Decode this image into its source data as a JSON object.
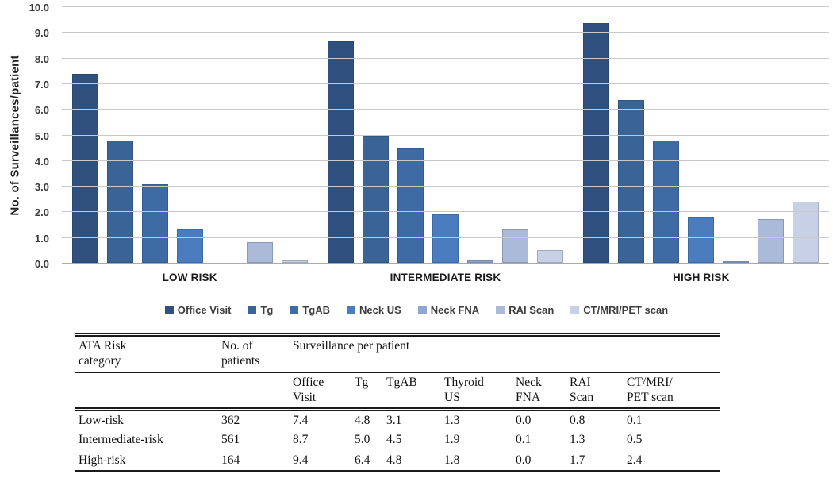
{
  "chart_data": {
    "type": "bar",
    "title": "",
    "xlabel": "",
    "ylabel": "No. of Surveillances/patient",
    "ylim": [
      0,
      10
    ],
    "ytick_step": 1.0,
    "ytick_labels": [
      "0.0",
      "1.0",
      "2.0",
      "3.0",
      "4.0",
      "5.0",
      "6.0",
      "7.0",
      "8.0",
      "9.0",
      "10.0"
    ],
    "grid": true,
    "legend_position": "bottom",
    "categories": [
      "LOW RISK",
      "INTERMEDIATE RISK",
      "HIGH RISK"
    ],
    "series": [
      {
        "name": "Office Visit",
        "color": "#30517e",
        "values": [
          7.4,
          8.7,
          9.4
        ]
      },
      {
        "name": "Tg",
        "color": "#3a6396",
        "values": [
          4.8,
          5.0,
          6.4
        ]
      },
      {
        "name": "TgAB",
        "color": "#3f6ba5",
        "values": [
          3.1,
          4.5,
          4.8
        ]
      },
      {
        "name": "Neck US",
        "color": "#4b7dbe",
        "values": [
          1.3,
          1.9,
          1.8
        ]
      },
      {
        "name": "Neck FNA",
        "color": "#91a6ce",
        "values": [
          0.0,
          0.1,
          0.05
        ]
      },
      {
        "name": "RAI Scan",
        "color": "#abbad9",
        "values": [
          0.8,
          1.3,
          1.7
        ]
      },
      {
        "name": "CT/MRI/PET scan",
        "color": "#c7d0e5",
        "values": [
          0.1,
          0.5,
          2.4
        ]
      }
    ]
  },
  "table": {
    "col1_header": "ATA Risk\ncategory",
    "col2_header": "No. of\npatients",
    "group_header": "Surveillance per patient",
    "subcols": [
      "Office\nVisit",
      "Tg",
      "TgAB",
      "Thyroid\nUS",
      "Neck\nFNA",
      "RAI\nScan",
      "CT/MRI/\nPET scan"
    ],
    "rows": [
      {
        "category": "Low-risk",
        "patients": "362",
        "values": [
          "7.4",
          "4.8",
          "3.1",
          "1.3",
          "0.0",
          "0.8",
          "0.1"
        ]
      },
      {
        "category": "Intermediate-risk",
        "patients": "561",
        "values": [
          "8.7",
          "5.0",
          "4.5",
          "1.9",
          "0.1",
          "1.3",
          "0.5"
        ]
      },
      {
        "category": "High-risk",
        "patients": "164",
        "values": [
          "9.4",
          "6.4",
          "4.8",
          "1.8",
          "0.0",
          "1.7",
          "2.4"
        ]
      }
    ]
  }
}
